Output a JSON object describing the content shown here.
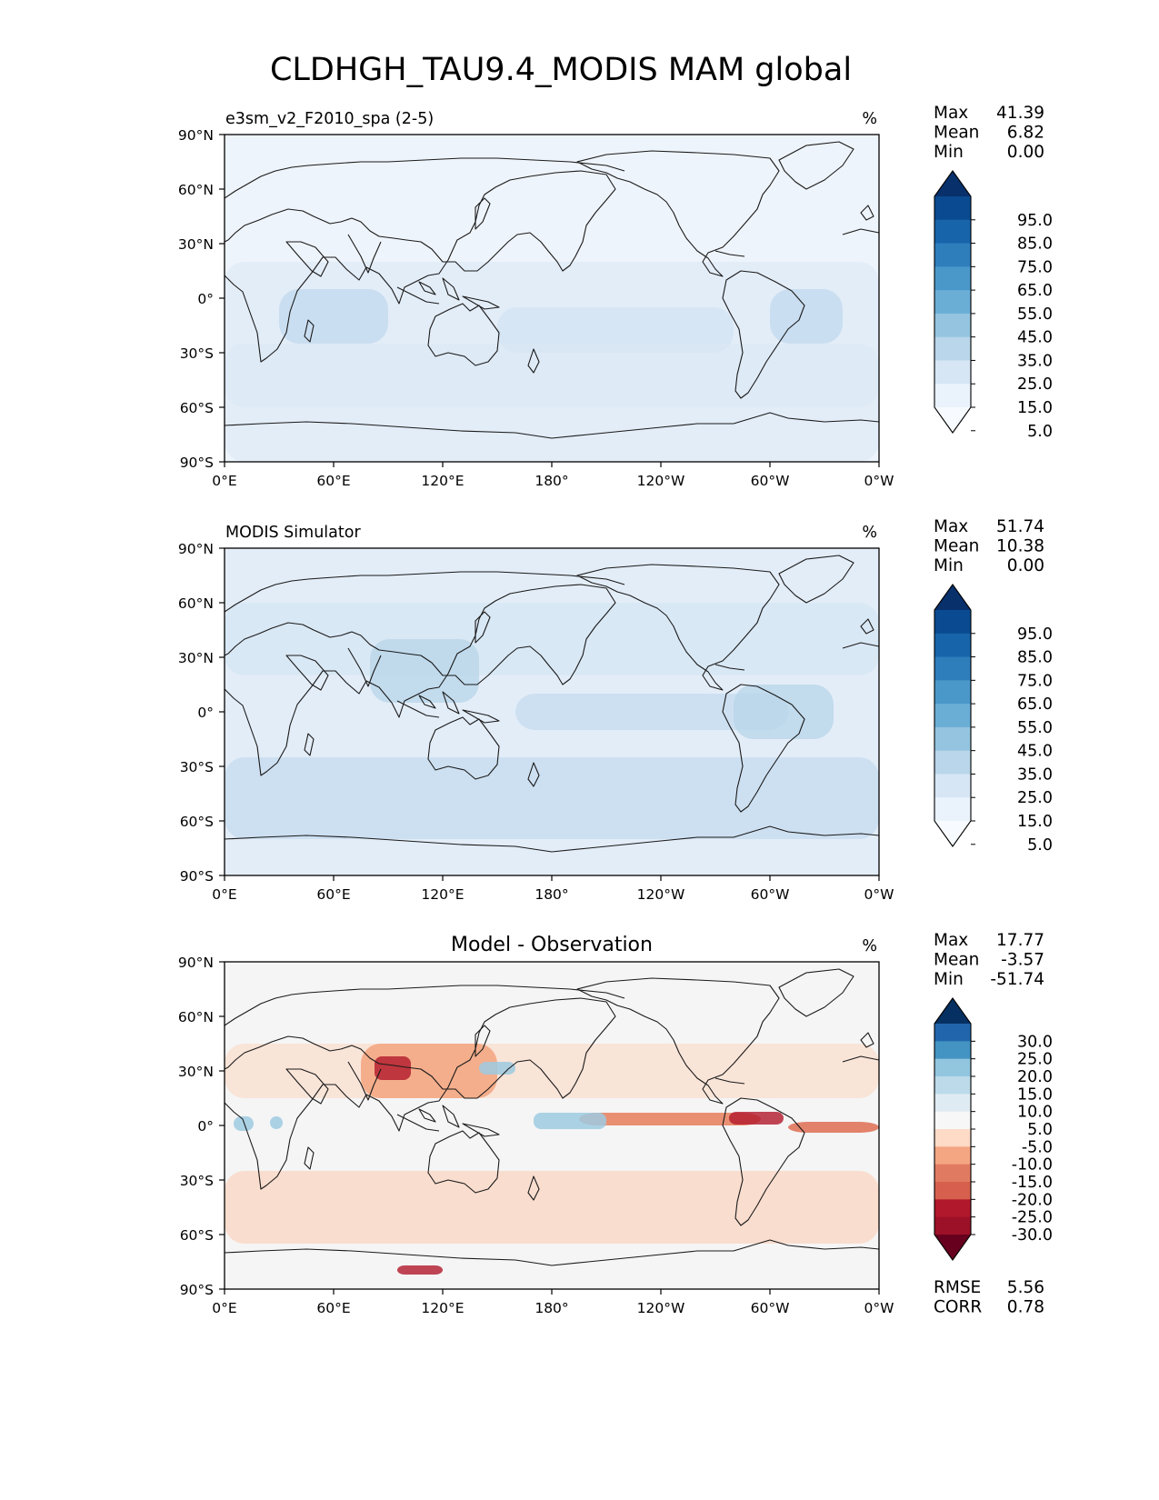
{
  "figure": {
    "title": "CLDHGH_TAU9.4_MODIS MAM global",
    "x_ticks": [
      "0°E",
      "60°E",
      "120°E",
      "180°",
      "120°W",
      "60°W",
      "0°W"
    ],
    "y_ticks": [
      "90°N",
      "60°N",
      "30°N",
      "0°",
      "30°S",
      "60°S",
      "90°S"
    ]
  },
  "panels": [
    {
      "title": "e3sm_v2_F2010_spa (2-5)",
      "title_style": "left",
      "units": "%",
      "stats": [
        {
          "label": "Max",
          "value": "41.39"
        },
        {
          "label": "Mean",
          "value": "6.82"
        },
        {
          "label": "Min",
          "value": "0.00"
        }
      ],
      "colorbar": {
        "labels": [
          "95.0",
          "85.0",
          "75.0",
          "65.0",
          "55.0",
          "45.0",
          "35.0",
          "25.0",
          "15.0",
          "5.0"
        ],
        "colors": [
          "#08306b",
          "#0a4a90",
          "#1764ab",
          "#2e7ebc",
          "#4a98c9",
          "#6aaed6",
          "#94c4df",
          "#b9d6ea",
          "#d6e6f4",
          "#eaf2fb",
          "#f7fbff"
        ]
      },
      "map_base_color": "#eef4fb"
    },
    {
      "title": "MODIS Simulator",
      "title_style": "left",
      "units": "%",
      "stats": [
        {
          "label": "Max",
          "value": "51.74"
        },
        {
          "label": "Mean",
          "value": "10.38"
        },
        {
          "label": "Min",
          "value": "0.00"
        }
      ],
      "colorbar": {
        "labels": [
          "95.0",
          "85.0",
          "75.0",
          "65.0",
          "55.0",
          "45.0",
          "35.0",
          "25.0",
          "15.0",
          "5.0"
        ],
        "colors": [
          "#08306b",
          "#0a4a90",
          "#1764ab",
          "#2e7ebc",
          "#4a98c9",
          "#6aaed6",
          "#94c4df",
          "#b9d6ea",
          "#d6e6f4",
          "#eaf2fb",
          "#f7fbff"
        ]
      },
      "map_base_color": "#e3edf8"
    },
    {
      "title": "Model - Observation",
      "title_style": "center",
      "units": "%",
      "stats": [
        {
          "label": "Max",
          "value": "17.77"
        },
        {
          "label": "Mean",
          "value": "-3.57"
        },
        {
          "label": "Min",
          "value": "-51.74"
        }
      ],
      "colorbar": {
        "labels": [
          "30.0",
          "25.0",
          "20.0",
          "15.0",
          "10.0",
          "5.0",
          "-5.0",
          "-10.0",
          "-15.0",
          "-20.0",
          "-25.0",
          "-30.0"
        ],
        "colors": [
          "#053061",
          "#2166ac",
          "#4393c3",
          "#92c5de",
          "#bcdaea",
          "#dfebf2",
          "#f7f7f7",
          "#fddbc7",
          "#f4a582",
          "#e07b62",
          "#d6604d",
          "#b2182b",
          "#9c1127",
          "#67001f"
        ]
      },
      "map_base_color": "#f5f5f5",
      "extra_stats": [
        {
          "label": "RMSE",
          "value": "5.56"
        },
        {
          "label": "CORR",
          "value": "0.78"
        }
      ]
    }
  ]
}
